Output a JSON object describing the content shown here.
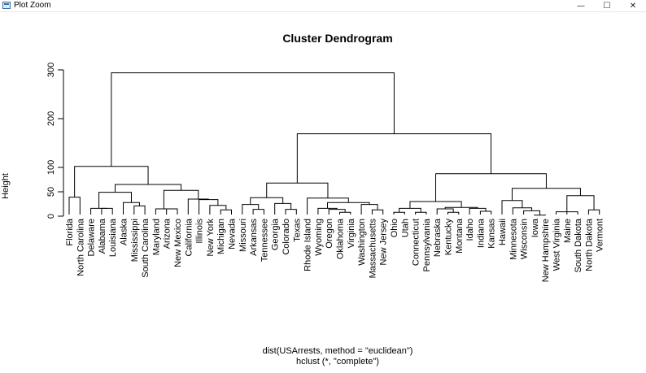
{
  "window": {
    "title": "Plot Zoom"
  },
  "icons": {
    "app": "plot-window-icon",
    "minimize": "minimize-icon",
    "maximize": "maximize-icon",
    "close": "close-icon"
  },
  "glyphs": {
    "minimize": "—",
    "maximize": "☐",
    "close": "✕"
  },
  "chart_data": {
    "type": "dendrogram",
    "title": "Cluster Dendrogram",
    "ylabel": "Height",
    "xlabel": "dist(USArrests, method = \"euclidean\")",
    "sublabel": "hclust (*, \"complete\")",
    "ylim": [
      0,
      300
    ],
    "yticks": [
      0,
      50,
      100,
      200,
      300
    ],
    "leaves": [
      "Florida",
      "North Carolina",
      "Delaware",
      "Alabama",
      "Louisiana",
      "Alaska",
      "Mississippi",
      "South Carolina",
      "Maryland",
      "Arizona",
      "New Mexico",
      "California",
      "Illinois",
      "New York",
      "Michigan",
      "Nevada",
      "Missouri",
      "Arkansas",
      "Tennessee",
      "Georgia",
      "Colorado",
      "Texas",
      "Rhode Island",
      "Wyoming",
      "Oregon",
      "Oklahoma",
      "Virginia",
      "Washington",
      "Massachusetts",
      "New Jersey",
      "Ohio",
      "Utah",
      "Connecticut",
      "Pennsylvania",
      "Nebraska",
      "Kentucky",
      "Montana",
      "Idaho",
      "Indiana",
      "Kansas",
      "Hawaii",
      "Minnesota",
      "Wisconsin",
      "Iowa",
      "New Hampshire",
      "West Virginia",
      "Maine",
      "South Dakota",
      "North Dakota",
      "Vermont"
    ],
    "merges": [
      {
        "left": "Florida",
        "right": "North Carolina",
        "height": 39
      },
      {
        "left": "Alabama",
        "right": "Louisiana",
        "height": 16
      },
      {
        "left": "Delaware",
        "right": "m1",
        "height": 16
      },
      {
        "left": "Mississippi",
        "right": "South Carolina",
        "height": 21
      },
      {
        "left": "Alaska",
        "right": "m3",
        "height": 28
      },
      {
        "left": "m2",
        "right": "m4",
        "height": 49
      },
      {
        "left": "Arizona",
        "right": "New Mexico",
        "height": 15
      },
      {
        "left": "Maryland",
        "right": "m6",
        "height": 15
      },
      {
        "left": "Michigan",
        "right": "Nevada",
        "height": 13
      },
      {
        "left": "New York",
        "right": "m8",
        "height": 22
      },
      {
        "left": "Illinois",
        "right": "m9",
        "height": 34
      },
      {
        "left": "California",
        "right": "m10",
        "height": 35
      },
      {
        "left": "m7",
        "right": "m11",
        "height": 53
      },
      {
        "left": "m5",
        "right": "m12",
        "height": 65
      },
      {
        "left": "m0",
        "right": "m13",
        "height": 102
      },
      {
        "left": "Arkansas",
        "right": "Tennessee",
        "height": 14
      },
      {
        "left": "Colorado",
        "right": "Texas",
        "height": 14
      },
      {
        "left": "Georgia",
        "right": "m16",
        "height": 26
      },
      {
        "left": "Missouri",
        "right": "m15",
        "height": 24
      },
      {
        "left": "m18",
        "right": "m17",
        "height": 38
      },
      {
        "left": "Oklahoma",
        "right": "Virginia",
        "height": 8
      },
      {
        "left": "Oregon",
        "right": "m20",
        "height": 14
      },
      {
        "left": "Wyoming",
        "right": "m21",
        "height": 16
      },
      {
        "left": "Massachusetts",
        "right": "New Jersey",
        "height": 13
      },
      {
        "left": "Washington",
        "right": "m23",
        "height": 24
      },
      {
        "left": "m22",
        "right": "m24",
        "height": 28
      },
      {
        "left": "Rhode Island",
        "right": "m25",
        "height": 37
      },
      {
        "left": "m19",
        "right": "m26",
        "height": 68
      },
      {
        "left": "Ohio",
        "right": "Utah",
        "height": 8
      },
      {
        "left": "Connecticut",
        "right": "Pennsylvania",
        "height": 8
      },
      {
        "left": "m28",
        "right": "m29",
        "height": 16
      },
      {
        "left": "Kentucky",
        "right": "Montana",
        "height": 8
      },
      {
        "left": "Nebraska",
        "right": "m31",
        "height": 15
      },
      {
        "left": "Indiana",
        "right": "Kansas",
        "height": 10
      },
      {
        "left": "Idaho",
        "right": "m33",
        "height": 16
      },
      {
        "left": "m32",
        "right": "m34",
        "height": 18
      },
      {
        "left": "m30",
        "right": "m35",
        "height": 30
      },
      {
        "left": "Iowa",
        "right": "New Hampshire",
        "height": 2
      },
      {
        "left": "Wisconsin",
        "right": "m37",
        "height": 11
      },
      {
        "left": "Minnesota",
        "right": "m38",
        "height": 17
      },
      {
        "left": "Hawaii",
        "right": "m39",
        "height": 32
      },
      {
        "left": "South Dakota",
        "right": "West Virginia",
        "height": 9
      },
      {
        "left": "Maine",
        "right": "m41",
        "height": 12
      },
      {
        "left": "North Dakota",
        "right": "Vermont",
        "height": 13
      },
      {
        "left": "m42",
        "right": "m43",
        "height": 42
      },
      {
        "left": "m40",
        "right": "m44",
        "height": 57
      },
      {
        "left": "m36",
        "right": "m45",
        "height": 87
      },
      {
        "left": "m27",
        "right": "m46",
        "height": 169
      },
      {
        "left": "m14",
        "right": "m47",
        "height": 294
      }
    ]
  }
}
